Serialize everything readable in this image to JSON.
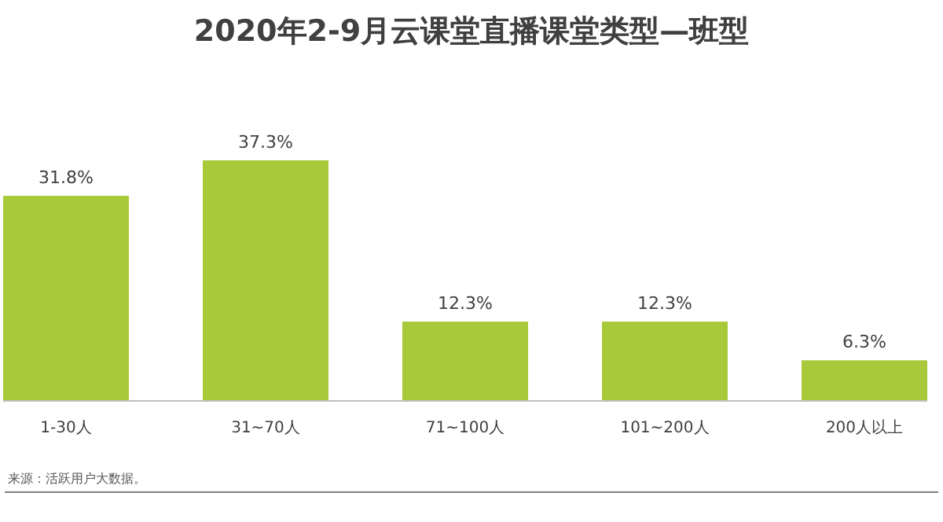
{
  "chart_data": {
    "type": "bar",
    "title": "2020年2-9月云课堂直播课堂类型—班型",
    "categories": [
      "1-30人",
      "31~70人",
      "71~100人",
      "101~200人",
      "200人以上"
    ],
    "values": [
      31.8,
      37.3,
      12.3,
      12.3,
      6.3
    ],
    "value_labels": [
      "31.8%",
      "37.3%",
      "12.3%",
      "12.3%",
      "6.3%"
    ],
    "color": "#a8c93a",
    "annotations": [
      "来源：活跃用户大数据。"
    ]
  }
}
